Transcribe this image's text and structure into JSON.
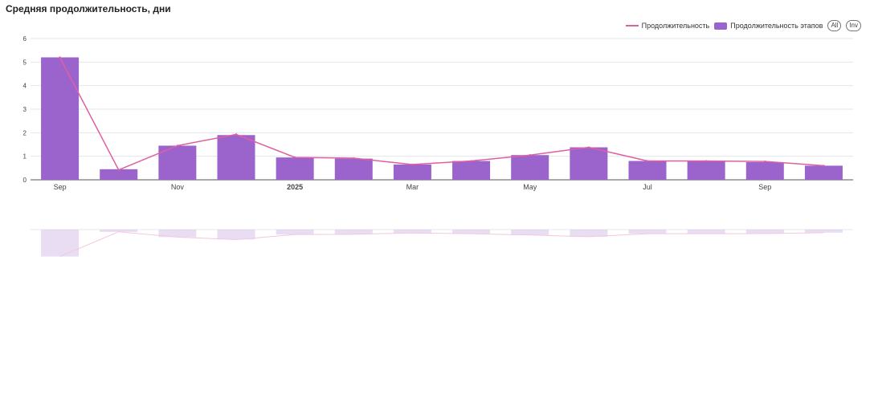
{
  "title": "Средняя продолжительность, дни",
  "legend": {
    "line_label": "Продолжительность",
    "bar_label": "Продолжительность этапов",
    "all_label": "All",
    "inv_label": "Inv"
  },
  "chart_data": {
    "type": "bar",
    "x_tick_labels": [
      "Sep",
      "",
      "Nov",
      "",
      "2025",
      "",
      "Mar",
      "",
      "May",
      "",
      "Jul",
      "",
      "Sep",
      ""
    ],
    "series": [
      {
        "name": "Продолжительность этапов",
        "type": "bar",
        "values": [
          5.2,
          0.45,
          1.45,
          1.9,
          0.95,
          0.9,
          0.65,
          0.8,
          1.05,
          1.38,
          0.8,
          0.8,
          0.75,
          0.6
        ]
      },
      {
        "name": "Продолжительность",
        "type": "line",
        "values": [
          5.2,
          0.42,
          1.45,
          1.93,
          0.95,
          0.92,
          0.65,
          0.8,
          1.05,
          1.38,
          0.8,
          0.8,
          0.78,
          0.6
        ]
      }
    ],
    "y_ticks": [
      0,
      1,
      2,
      3,
      4,
      5,
      6
    ],
    "ylim": [
      0,
      6
    ],
    "grid": true,
    "legend_position": "top-right",
    "colors": {
      "bar": "#9b63cc",
      "line": "#e05fa0",
      "grid": "#e3e6f0"
    }
  }
}
